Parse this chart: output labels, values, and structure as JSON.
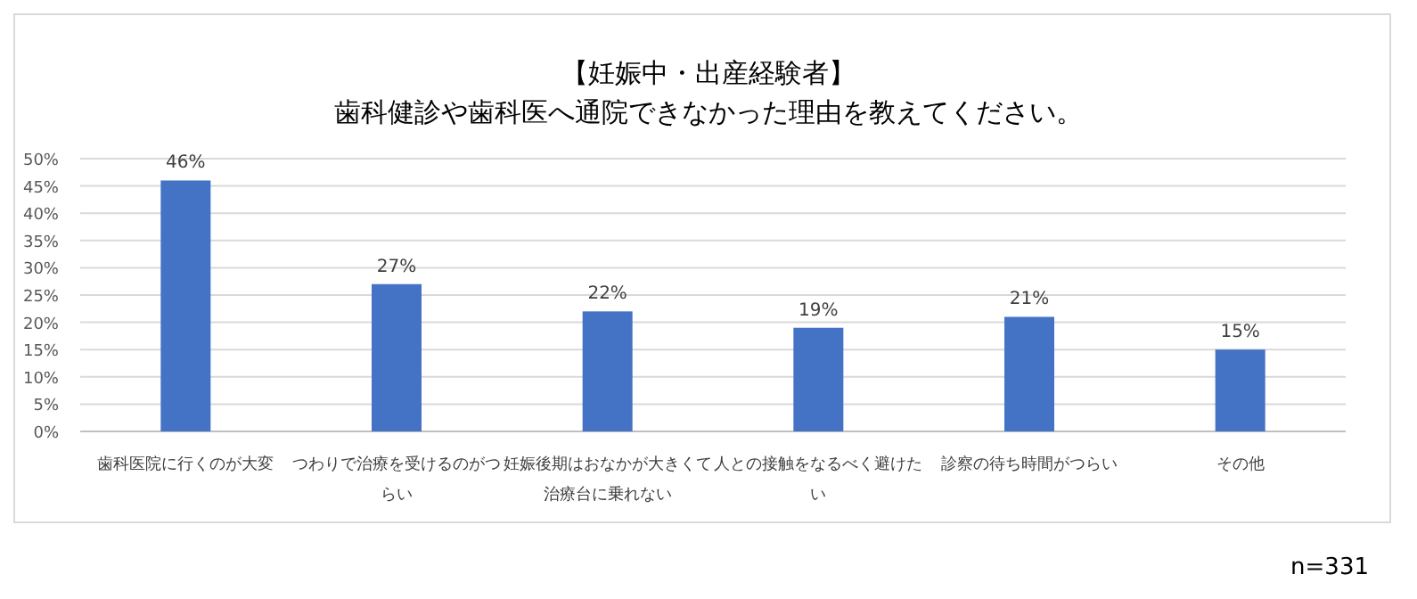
{
  "chart_data": {
    "type": "bar",
    "title": "【妊娠中・出産経験者】",
    "subtitle": "歯科健診や歯科医へ通院できなかった理由を教えてください。",
    "categories": [
      "歯科医院に行くのが大変",
      "つわりで治療を受けるのがつらい",
      "妊娠後期はおなかが大きくて治療台に乗れない",
      "人との接触をなるべく避けたい",
      "診察の待ち時間がつらい",
      "その他"
    ],
    "values": [
      46,
      27,
      22,
      19,
      21,
      15
    ],
    "value_labels": [
      "46%",
      "27%",
      "22%",
      "19%",
      "21%",
      "15%"
    ],
    "color": "#4472c4",
    "ylim": [
      0,
      50
    ],
    "yticks": [
      {
        "value": 0,
        "label": "0%"
      },
      {
        "value": 5,
        "label": "5%"
      },
      {
        "value": 10,
        "label": "10%"
      },
      {
        "value": 15,
        "label": "15%"
      },
      {
        "value": 20,
        "label": "20%"
      },
      {
        "value": 25,
        "label": "25%"
      },
      {
        "value": 30,
        "label": "30%"
      },
      {
        "value": 35,
        "label": "35%"
      },
      {
        "value": 40,
        "label": "40%"
      },
      {
        "value": 45,
        "label": "45%"
      },
      {
        "value": 50,
        "label": "50%"
      }
    ],
    "grid": "y",
    "annotations": [
      "n=331"
    ]
  }
}
